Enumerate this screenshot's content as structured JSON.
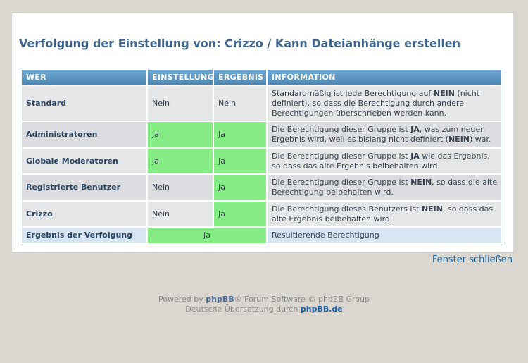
{
  "page": {
    "title": "Verfolgung der Einstellung von: Crizzo / Kann Dateianhänge erstellen",
    "close_link": "Fenster schließen"
  },
  "table": {
    "headers": [
      "WER",
      "EINSTELLUNG",
      "ERGEBNIS",
      "INFORMATION"
    ],
    "rows": [
      {
        "who": "Standard",
        "setting": "Nein",
        "setting_state": "no",
        "result": "Nein",
        "result_state": "no",
        "info": [
          "Standardmäßig ist jede Berechtigung auf ",
          "NEIN",
          " (nicht definiert), so dass die Berechtigung durch andere Berechtigungen überschrieben werden kann."
        ]
      },
      {
        "who": "Administratoren",
        "setting": "Ja",
        "setting_state": "yes",
        "result": "Ja",
        "result_state": "yes",
        "info": [
          "Die Berechtigung dieser Gruppe ist ",
          "JA",
          ", was zum neuen Ergebnis wird, weil es bislang nicht definiert (",
          "NEIN",
          ") war."
        ]
      },
      {
        "who": "Globale Moderatoren",
        "setting": "Ja",
        "setting_state": "yes",
        "result": "Ja",
        "result_state": "yes",
        "info": [
          "Die Berechtigung dieser Gruppe ist ",
          "JA",
          " wie das Ergebnis, so dass das alte Ergebnis beibehalten wird."
        ]
      },
      {
        "who": "Registrierte Benutzer",
        "setting": "Nein",
        "setting_state": "no",
        "result": "Ja",
        "result_state": "yes",
        "info": [
          "Die Berechtigung dieser Gruppe ist ",
          "NEIN",
          ", so dass die alte Berechtigung beibehalten wird."
        ]
      },
      {
        "who": "Crizzo",
        "setting": "Nein",
        "setting_state": "no",
        "result": "Ja",
        "result_state": "yes",
        "info": [
          "Die Berechtigung dieses Benutzers ist ",
          "NEIN",
          ", so dass das alte Ergebnis beibehalten wird."
        ]
      }
    ],
    "total_row": {
      "who": "Ergebnis der Verfolgung",
      "value": "Ja",
      "value_state": "yes",
      "info": "Resultierende Berechtigung"
    }
  },
  "footer": {
    "powered_prefix": "Powered by ",
    "phpbb_link": "phpBB",
    "powered_suffix": "® Forum Software © phpBB Group",
    "translation_prefix": "Deutsche Übersetzung durch ",
    "phpbbde_link": "phpBB.de"
  },
  "colors": {
    "page_bg": "#DAD7D0",
    "title_blue": "#40658C",
    "header_blue_top": "#6FA8D2",
    "header_blue_bottom": "#4B87B4",
    "row_light": "#E4E6E8",
    "row_dark": "#DBDDE0",
    "yes_green": "#86EC86",
    "result_row_blue": "#D8E6F4",
    "link_blue": "#1568A8"
  }
}
